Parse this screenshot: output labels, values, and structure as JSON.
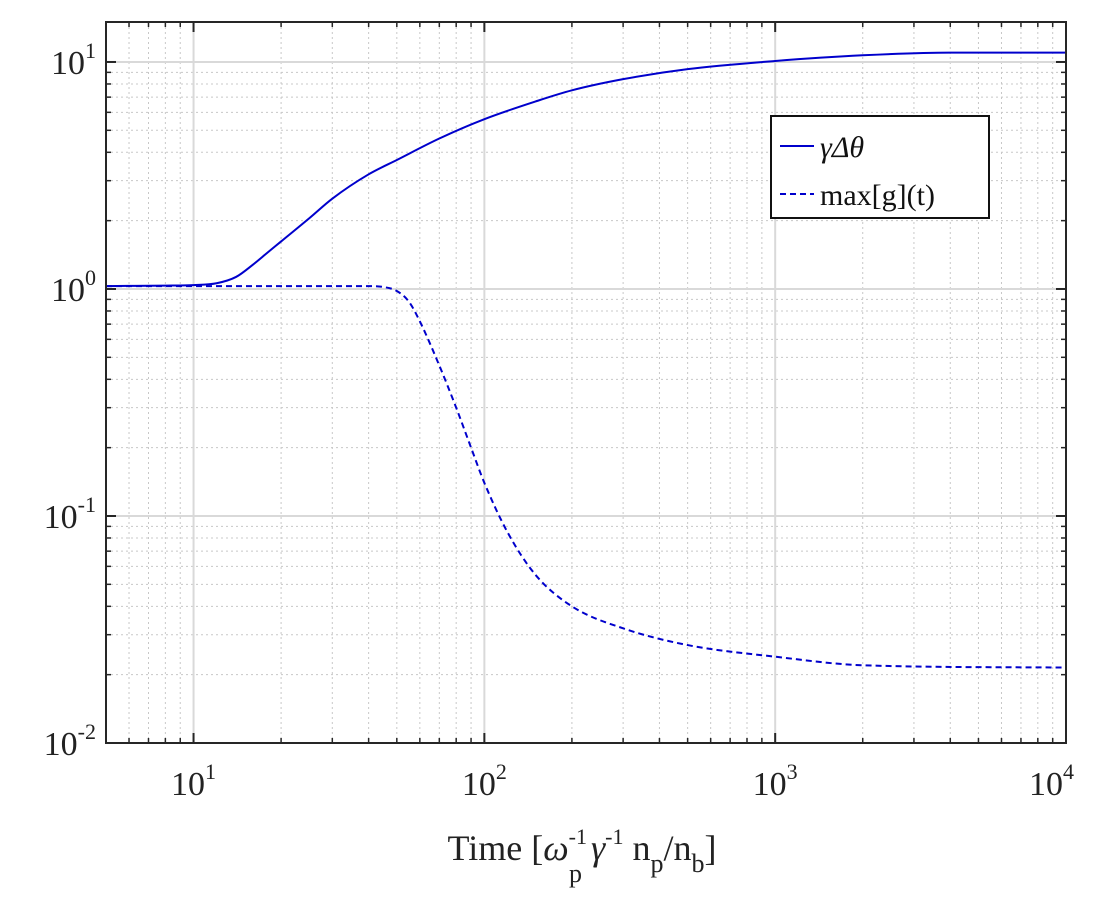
{
  "chart_data": {
    "type": "line",
    "x_scale": "log",
    "y_scale": "log",
    "xlim": [
      5,
      10000
    ],
    "ylim": [
      0.01,
      15
    ],
    "xticks": [
      {
        "value": 10,
        "base": "10",
        "exp": "1"
      },
      {
        "value": 100,
        "base": "10",
        "exp": "2"
      },
      {
        "value": 1000,
        "base": "10",
        "exp": "3"
      },
      {
        "value": 10000,
        "base": "10",
        "exp": "4"
      }
    ],
    "yticks": [
      {
        "value": 0.01,
        "base": "10",
        "exp": "-2"
      },
      {
        "value": 0.1,
        "base": "10",
        "exp": "-1"
      },
      {
        "value": 1,
        "base": "10",
        "exp": "0"
      },
      {
        "value": 10,
        "base": "10",
        "exp": "1"
      }
    ],
    "xlabel": {
      "prefix": "Time [",
      "omega": "ω",
      "omega_sub": "p",
      "omega_sup": "-1",
      "gamma": "γ",
      "gamma_sup": "-1",
      "n1": "n",
      "n1_sub": "p",
      "slash": "/n",
      "n2_sub": "b",
      "suffix": "]"
    },
    "grid": {
      "major": true,
      "minor": true
    },
    "legend_position": "top-right",
    "series": [
      {
        "name": "γΔθ",
        "style": "solid",
        "color": "#0000cc",
        "points": [
          [
            5,
            1.03
          ],
          [
            8,
            1.035
          ],
          [
            10,
            1.04
          ],
          [
            12,
            1.06
          ],
          [
            14,
            1.13
          ],
          [
            16,
            1.28
          ],
          [
            18,
            1.45
          ],
          [
            20,
            1.62
          ],
          [
            25,
            2.05
          ],
          [
            30,
            2.5
          ],
          [
            40,
            3.2
          ],
          [
            50,
            3.7
          ],
          [
            70,
            4.6
          ],
          [
            100,
            5.6
          ],
          [
            150,
            6.7
          ],
          [
            200,
            7.5
          ],
          [
            300,
            8.4
          ],
          [
            500,
            9.3
          ],
          [
            1000,
            10.1
          ],
          [
            2000,
            10.7
          ],
          [
            4000,
            11.0
          ],
          [
            10000,
            11.0
          ]
        ]
      },
      {
        "name": "max[g](t)",
        "style": "dashed",
        "color": "#0000cc",
        "points": [
          [
            5,
            1.03
          ],
          [
            10,
            1.03
          ],
          [
            20,
            1.03
          ],
          [
            30,
            1.03
          ],
          [
            40,
            1.03
          ],
          [
            45,
            1.02
          ],
          [
            50,
            0.98
          ],
          [
            55,
            0.88
          ],
          [
            60,
            0.72
          ],
          [
            70,
            0.46
          ],
          [
            80,
            0.3
          ],
          [
            90,
            0.2
          ],
          [
            100,
            0.14
          ],
          [
            120,
            0.085
          ],
          [
            150,
            0.055
          ],
          [
            200,
            0.04
          ],
          [
            300,
            0.032
          ],
          [
            500,
            0.027
          ],
          [
            1000,
            0.024
          ],
          [
            2000,
            0.022
          ],
          [
            10000,
            0.0215
          ]
        ]
      }
    ]
  }
}
